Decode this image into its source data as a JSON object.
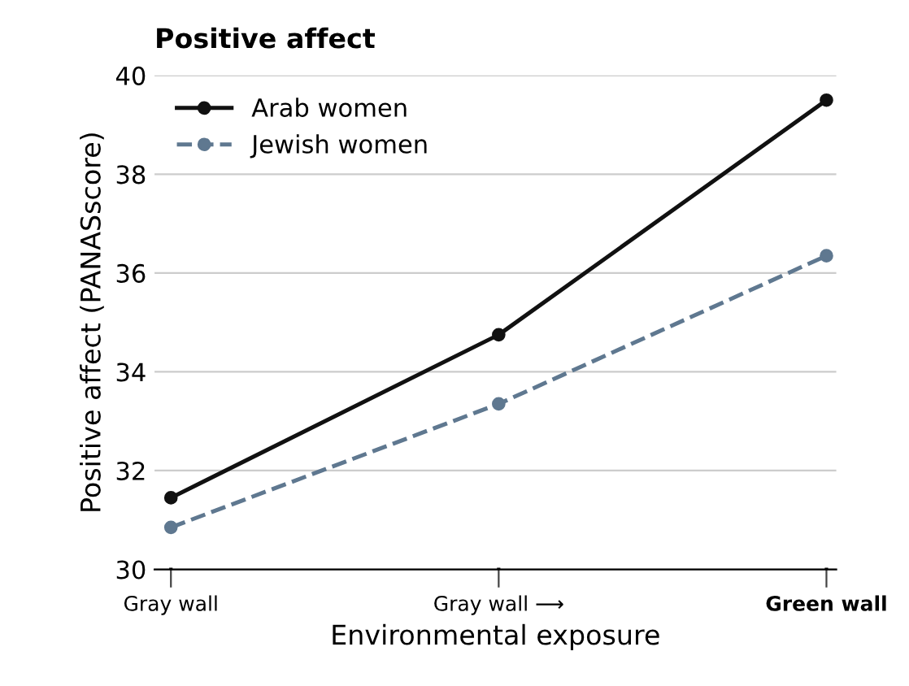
{
  "chart_data": {
    "type": "line",
    "title": "Positive affect",
    "xlabel": "Environmental exposure",
    "ylabel": "Positive affect (PANASscore)",
    "categories": [
      "Gray wall",
      "Gray wall ⟶",
      "Green wall"
    ],
    "series": [
      {
        "name": "Arab women",
        "color": "#111111",
        "values": [
          31.45,
          34.75,
          39.5
        ],
        "line_style": "solid"
      },
      {
        "name": "Jewish women",
        "color": "#5f7890",
        "values": [
          30.85,
          33.35,
          36.35
        ],
        "line_style": "dashed"
      }
    ],
    "ylim": [
      30,
      40
    ],
    "yticks": [
      30,
      32,
      34,
      36,
      38,
      40
    ],
    "grid": "y",
    "legend": "top left",
    "marker": "circle"
  }
}
